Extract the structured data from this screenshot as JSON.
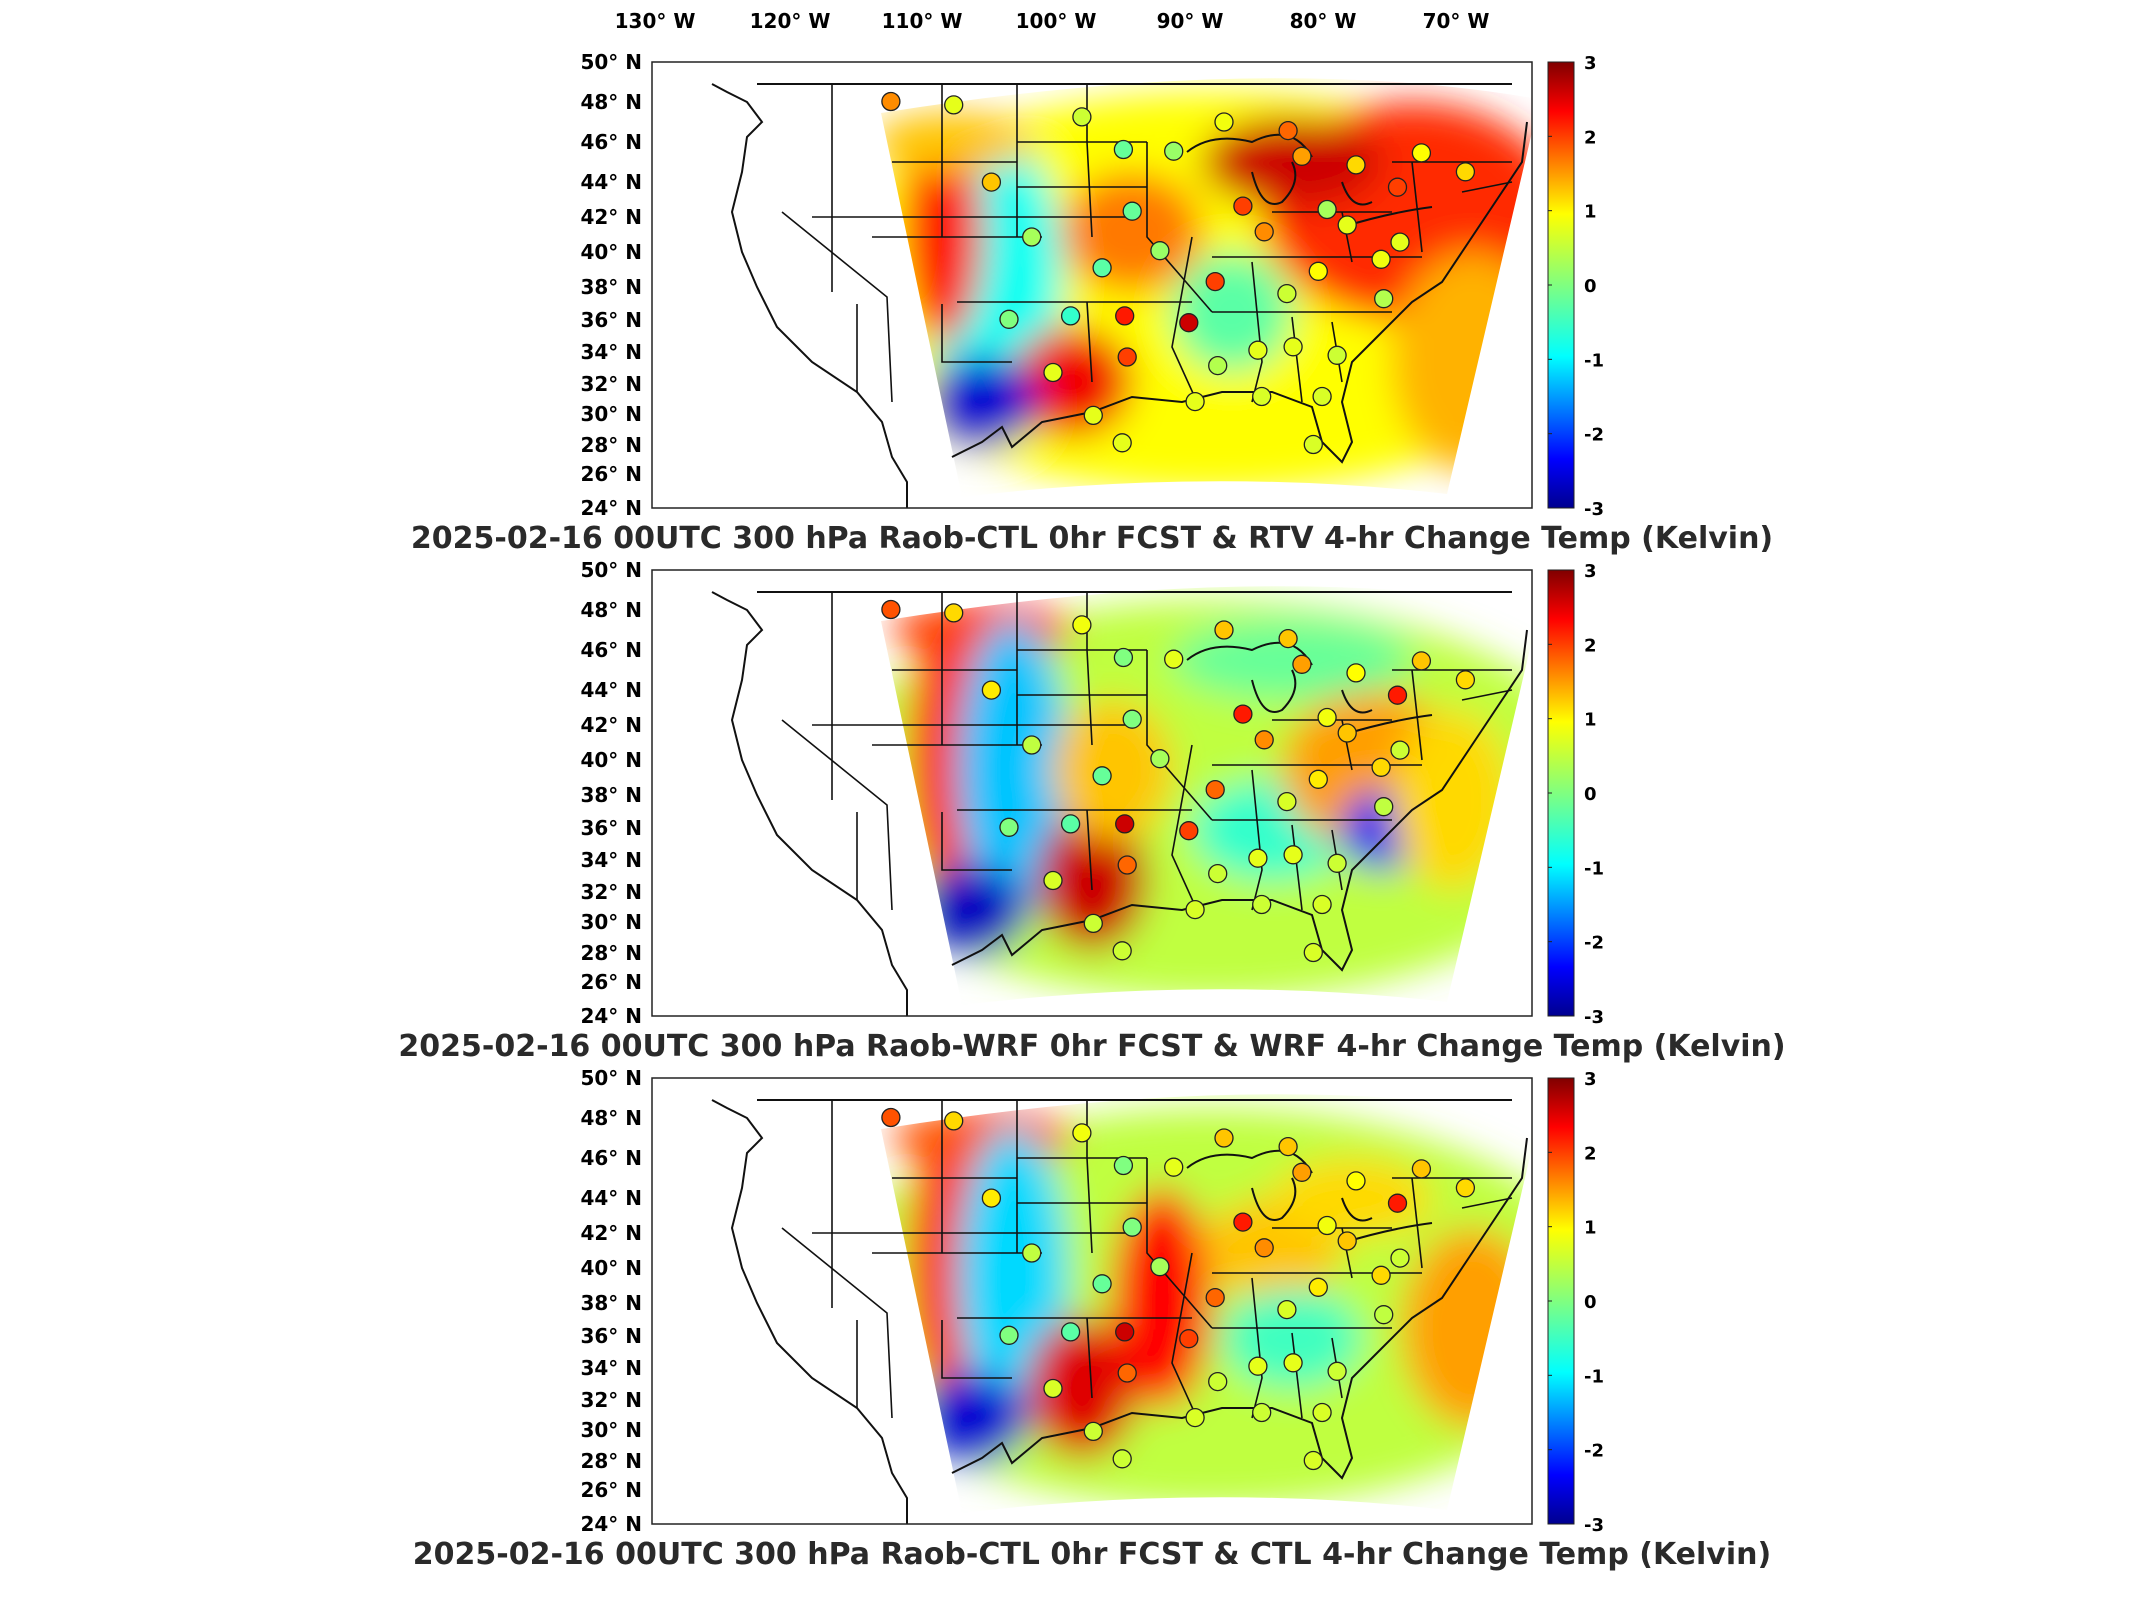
{
  "lon_axis": {
    "ticks": [
      "130° W",
      "120° W",
      "110° W",
      "100° W",
      "90° W",
      "80° W",
      "70° W"
    ]
  },
  "lat_axis": {
    "ticks": [
      "50° N",
      "48° N",
      "46° N",
      "44° N",
      "42° N",
      "40° N",
      "38° N",
      "36° N",
      "34° N",
      "32° N",
      "30° N",
      "28° N",
      "26° N",
      "24° N"
    ]
  },
  "colorbar": {
    "ticks": [
      "3",
      "2",
      "1",
      "0",
      "-1",
      "-2",
      "-3"
    ],
    "colors": [
      "#00008f",
      "#0000ff",
      "#0080ff",
      "#00ffff",
      "#80ff80",
      "#ffff00",
      "#ff8000",
      "#ff0000",
      "#800000"
    ]
  },
  "panels": [
    {
      "title": "2025-02-16 00UTC 300 hPa Raob-CTL 0hr FCST & RTV 4-hr Change Temp (Kelvin)"
    },
    {
      "title": "2025-02-16 00UTC 300 hPa Raob-WRF 0hr FCST & WRF 4-hr Change Temp (Kelvin)"
    },
    {
      "title": "2025-02-16 00UTC 300 hPa Raob-CTL 0hr FCST & CTL 4-hr Change Temp (Kelvin)"
    }
  ],
  "chart_data": {
    "type": "heatmap",
    "lon_range": [
      -135,
      -65
    ],
    "lat_range": [
      24,
      50
    ],
    "color_range": [
      -3,
      3
    ],
    "units": "Kelvin",
    "raob_stations": [
      {
        "lon": -116.0,
        "lat": 47.7,
        "d": [
          1.6,
          1.9,
          1.9
        ]
      },
      {
        "lon": -111.0,
        "lat": 47.5,
        "d": [
          0.8,
          1.2,
          1.2
        ]
      },
      {
        "lon": -100.8,
        "lat": 46.8,
        "d": [
          0.6,
          0.9,
          0.9
        ]
      },
      {
        "lon": -97.5,
        "lat": 44.9,
        "d": [
          -0.2,
          0.0,
          0.0
        ]
      },
      {
        "lon": -108.0,
        "lat": 43.0,
        "d": [
          1.3,
          1.1,
          1.1
        ]
      },
      {
        "lon": -93.5,
        "lat": 44.8,
        "d": [
          0.2,
          0.8,
          0.8
        ]
      },
      {
        "lon": -89.5,
        "lat": 46.5,
        "d": [
          0.9,
          1.3,
          1.3
        ]
      },
      {
        "lon": -84.4,
        "lat": 46.0,
        "d": [
          1.8,
          1.3,
          1.3
        ]
      },
      {
        "lon": -83.3,
        "lat": 44.5,
        "d": [
          1.5,
          1.5,
          1.5
        ]
      },
      {
        "lon": -79.0,
        "lat": 44.0,
        "d": [
          1.2,
          1.0,
          1.0
        ]
      },
      {
        "lon": -73.8,
        "lat": 44.7,
        "d": [
          1.0,
          1.3,
          1.3
        ]
      },
      {
        "lon": -75.7,
        "lat": 42.7,
        "d": [
          2.0,
          2.2,
          2.2
        ]
      },
      {
        "lon": -70.3,
        "lat": 43.6,
        "d": [
          1.2,
          1.2,
          1.2
        ]
      },
      {
        "lon": -88.0,
        "lat": 41.6,
        "d": [
          2.0,
          2.2,
          2.2
        ]
      },
      {
        "lon": -86.3,
        "lat": 40.1,
        "d": [
          1.6,
          1.6,
          1.6
        ]
      },
      {
        "lon": -81.3,
        "lat": 41.4,
        "d": [
          0.3,
          0.9,
          0.9
        ]
      },
      {
        "lon": -79.7,
        "lat": 40.5,
        "d": [
          0.8,
          1.3,
          1.3
        ]
      },
      {
        "lon": -96.8,
        "lat": 41.3,
        "d": [
          -0.2,
          0.0,
          0.0
        ]
      },
      {
        "lon": -104.8,
        "lat": 39.8,
        "d": [
          0.3,
          0.5,
          0.5
        ]
      },
      {
        "lon": -94.6,
        "lat": 39.0,
        "d": [
          0.2,
          0.3,
          0.3
        ]
      },
      {
        "lon": -99.2,
        "lat": 38.0,
        "d": [
          -0.3,
          -0.2,
          -0.2
        ]
      },
      {
        "lon": -90.2,
        "lat": 37.2,
        "d": [
          2.0,
          1.8,
          1.8
        ]
      },
      {
        "lon": -84.5,
        "lat": 36.5,
        "d": [
          0.6,
          0.7,
          0.7
        ]
      },
      {
        "lon": -82.0,
        "lat": 37.8,
        "d": [
          1.0,
          1.1,
          1.1
        ]
      },
      {
        "lon": -77.0,
        "lat": 38.5,
        "d": [
          0.9,
          1.2,
          1.2
        ]
      },
      {
        "lon": -75.5,
        "lat": 39.5,
        "d": [
          0.8,
          0.6,
          0.6
        ]
      },
      {
        "lon": -76.8,
        "lat": 36.2,
        "d": [
          0.4,
          0.5,
          0.5
        ]
      },
      {
        "lon": -106.6,
        "lat": 35.0,
        "d": [
          0.0,
          0.0,
          0.0
        ]
      },
      {
        "lon": -101.7,
        "lat": 35.2,
        "d": [
          -0.6,
          -0.3,
          -0.3
        ]
      },
      {
        "lon": -97.4,
        "lat": 35.2,
        "d": [
          2.2,
          2.6,
          2.6
        ]
      },
      {
        "lon": -92.3,
        "lat": 34.8,
        "d": [
          2.6,
          2.0,
          2.0
        ]
      },
      {
        "lon": -90.0,
        "lat": 32.3,
        "d": [
          0.4,
          0.6,
          0.6
        ]
      },
      {
        "lon": -86.8,
        "lat": 33.2,
        "d": [
          0.8,
          0.8,
          0.8
        ]
      },
      {
        "lon": -84.0,
        "lat": 33.4,
        "d": [
          0.8,
          0.8,
          0.8
        ]
      },
      {
        "lon": -80.5,
        "lat": 32.9,
        "d": [
          0.6,
          0.6,
          0.6
        ]
      },
      {
        "lon": -97.2,
        "lat": 32.8,
        "d": [
          2.0,
          1.8,
          1.8
        ]
      },
      {
        "lon": -103.1,
        "lat": 31.9,
        "d": [
          0.8,
          0.7,
          0.7
        ]
      },
      {
        "lon": -97.6,
        "lat": 27.8,
        "d": [
          0.8,
          0.6,
          0.6
        ]
      },
      {
        "lon": -91.8,
        "lat": 30.2,
        "d": [
          0.8,
          0.7,
          0.7
        ]
      },
      {
        "lon": -86.5,
        "lat": 30.5,
        "d": [
          0.7,
          0.6,
          0.6
        ]
      },
      {
        "lon": -81.7,
        "lat": 30.5,
        "d": [
          0.7,
          0.7,
          0.7
        ]
      },
      {
        "lon": -82.4,
        "lat": 27.7,
        "d": [
          0.7,
          0.7,
          0.7
        ]
      },
      {
        "lon": -99.9,
        "lat": 29.4,
        "d": [
          0.8,
          0.6,
          0.6
        ]
      }
    ]
  }
}
